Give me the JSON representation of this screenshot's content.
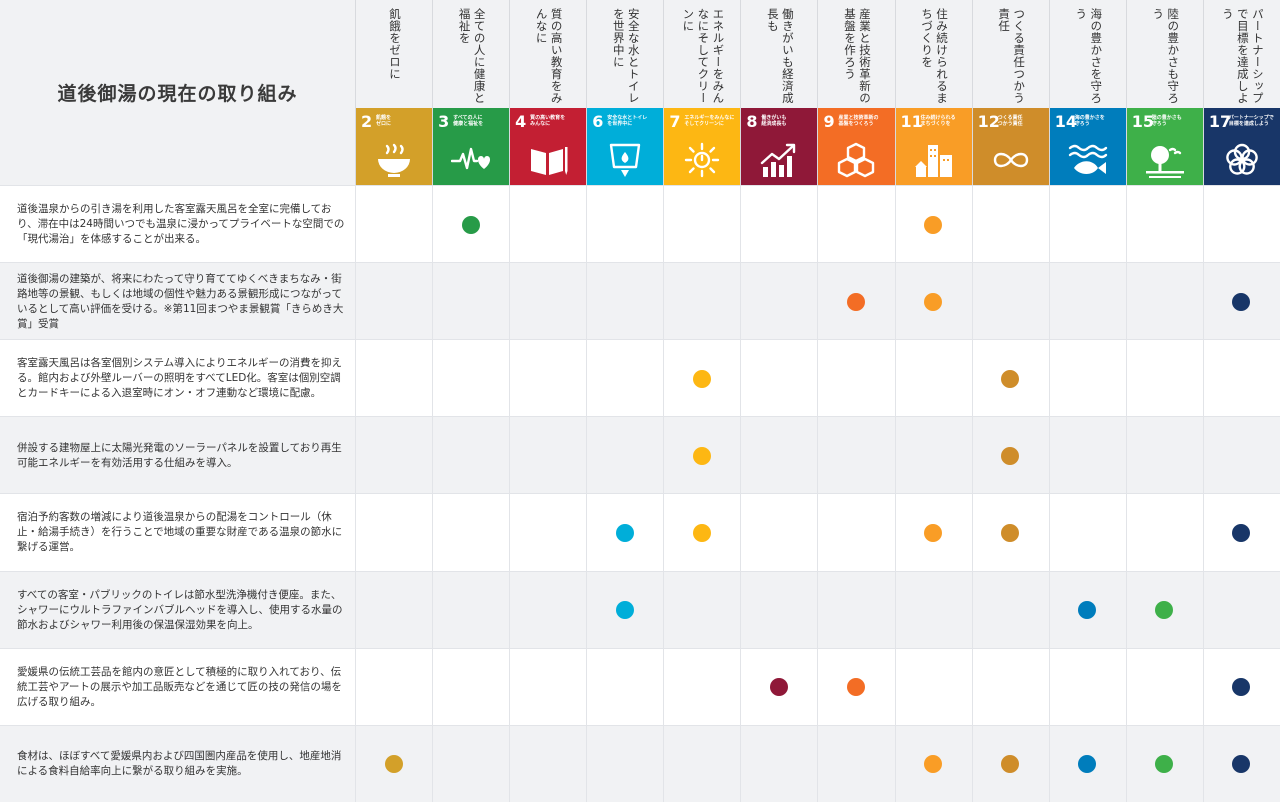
{
  "page": {
    "title": "道後御湯の現在の取り組み"
  },
  "goals": [
    {
      "key": "g2",
      "name": "飢餓をゼロに",
      "number": "2",
      "icon_text": "飢餓を\nゼロに",
      "icon": "bowl-icon",
      "color": "#d3a029"
    },
    {
      "key": "g3",
      "name": "全ての人に健康と福祉を",
      "number": "3",
      "icon_text": "すべての人に\n健康と福祉を",
      "icon": "heartbeat-icon",
      "color": "#279b48"
    },
    {
      "key": "g4",
      "name": "質の高い教育をみんなに",
      "number": "4",
      "icon_text": "質の高い教育を\nみんなに",
      "icon": "book-icon",
      "color": "#c31f33"
    },
    {
      "key": "g6",
      "name": "安全な水とトイレを世界中に",
      "number": "6",
      "icon_text": "安全な水とトイレ\nを世界中に",
      "icon": "water-drop-icon",
      "color": "#00aed9"
    },
    {
      "key": "g7",
      "name": "エネルギーをみんなにそしてクリーンに",
      "number": "7",
      "icon_text": "エネルギーをみんなに\nそしてクリーンに",
      "icon": "sun-power-icon",
      "color": "#fdb713"
    },
    {
      "key": "g8",
      "name": "働きがいも経済成長も",
      "number": "8",
      "icon_text": "働きがいも\n経済成長も",
      "icon": "growth-chart-icon",
      "color": "#8f1838"
    },
    {
      "key": "g9",
      "name": "産業と技術革新の基盤を作ろう",
      "number": "9",
      "icon_text": "産業と技術革新の\n基盤をつくろう",
      "icon": "cubes-icon",
      "color": "#f36d25"
    },
    {
      "key": "g11",
      "name": "住み続けられるまちづくりを",
      "number": "11",
      "icon_text": "住み続けられる\nまちづくりを",
      "icon": "city-icon",
      "color": "#f99d26"
    },
    {
      "key": "g12",
      "name": "つくる責任つかう責任",
      "number": "12",
      "icon_text": "つくる責任\nつかう責任",
      "icon": "infinity-icon",
      "color": "#cf8d2a"
    },
    {
      "key": "g14",
      "name": "海の豊かさを守ろう",
      "number": "14",
      "icon_text": "海の豊かさを\n守ろう",
      "icon": "fish-icon",
      "color": "#007dbc"
    },
    {
      "key": "g15",
      "name": "陸の豊かさも守ろう",
      "number": "15",
      "icon_text": "陸の豊かさも\n守ろう",
      "icon": "tree-icon",
      "color": "#3eb049"
    },
    {
      "key": "g17",
      "name": "パートナーシップで目標を達成しよう",
      "number": "17",
      "icon_text": "パートナーシップで\n目標を達成しよう",
      "icon": "rings-icon",
      "color": "#183668"
    }
  ],
  "rows": [
    {
      "text": "道後温泉からの引き湯を利用した客室露天風呂を全室に完備しており、滞在中は24時間いつでも温泉に浸かってプライベートな空間での「現代湯治」を体感することが出来る。",
      "goals": [
        "g3",
        "g11"
      ]
    },
    {
      "text": "道後御湯の建築が、将来にわたって守り育ててゆくべきまちなみ・街路地等の景観、もしくは地域の個性や魅力ある景観形成につながっているとして高い評価を受ける。※第11回まつやま景観賞「きらめき大賞」受賞",
      "goals": [
        "g9",
        "g11",
        "g17"
      ]
    },
    {
      "text": "客室露天風呂は各室個別システム導入によりエネルギーの消費を抑える。館内および外壁ルーバーの照明をすべてLED化。客室は個別空調とカードキーによる入退室時にオン・オフ連動など環境に配慮。",
      "goals": [
        "g7",
        "g12"
      ]
    },
    {
      "text": "併設する建物屋上に太陽光発電のソーラーパネルを設置しており再生可能エネルギーを有効活用する仕組みを導入。",
      "goals": [
        "g7",
        "g12"
      ]
    },
    {
      "text": "宿泊予約客数の増減により道後温泉からの配湯をコントロール（休止・給湯手続き）を行うことで地域の重要な財産である温泉の節水に繋げる運営。",
      "goals": [
        "g6",
        "g7",
        "g11",
        "g12",
        "g17"
      ]
    },
    {
      "text": "すべての客室・パブリックのトイレは節水型洗浄機付き便座。また、シャワーにウルトラファインバブルヘッドを導入し、使用する水量の節水およびシャワー利用後の保温保湿効果を向上。",
      "goals": [
        "g6",
        "g14",
        "g15"
      ]
    },
    {
      "text": "愛媛県の伝統工芸品を館内の意匠として積極的に取り入れており、伝統工芸やアートの展示や加工品販売などを通じて匠の技の発信の場を広げる取り組み。",
      "goals": [
        "g8",
        "g9",
        "g17"
      ]
    },
    {
      "text": "食材は、ほぼすべて愛媛県内および四国圏内産品を使用し、地産地消による食料自給率向上に繋がる取り組みを実施。",
      "goals": [
        "g2",
        "g11",
        "g12",
        "g14",
        "g15",
        "g17"
      ]
    }
  ]
}
